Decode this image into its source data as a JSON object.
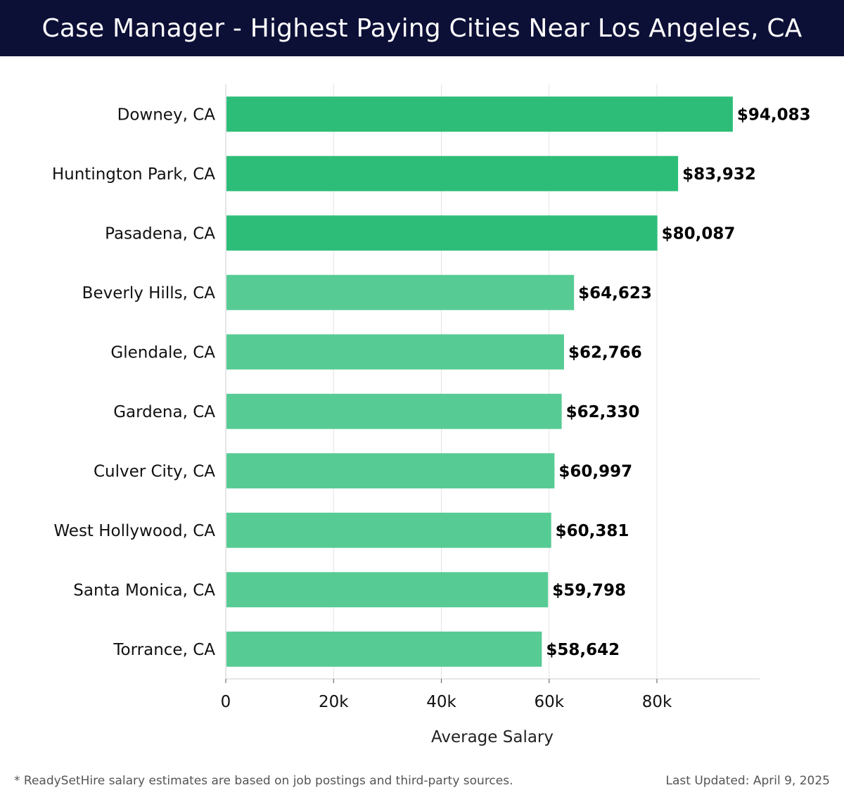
{
  "header": {
    "title": "Case Manager - Highest Paying Cities Near Los Angeles, CA"
  },
  "chart_data": {
    "type": "bar",
    "orientation": "horizontal",
    "categories": [
      "Downey, CA",
      "Huntington Park, CA",
      "Pasadena, CA",
      "Beverly Hills, CA",
      "Glendale, CA",
      "Gardena, CA",
      "Culver City, CA",
      "West Hollywood, CA",
      "Santa Monica, CA",
      "Torrance, CA"
    ],
    "values": [
      94083,
      83932,
      80087,
      64623,
      62766,
      62330,
      60997,
      60381,
      59798,
      58642
    ],
    "value_labels": [
      "$94,083",
      "$83,932",
      "$80,087",
      "$64,623",
      "$62,766",
      "$62,330",
      "$60,997",
      "$60,381",
      "$59,798",
      "$58,642"
    ],
    "xlabel": "Average Salary",
    "ylabel": "",
    "xlim": [
      0,
      99000
    ],
    "xticks": [
      0,
      20000,
      40000,
      60000,
      80000
    ],
    "xtick_labels": [
      "0",
      "20k",
      "40k",
      "60k",
      "80k"
    ],
    "grid": true,
    "colors": {
      "top_bars": "#2dbd78",
      "other_bars": "#57cb94",
      "grid": "#e3e3e3",
      "axis": "#cccccc"
    }
  },
  "footer": {
    "note": "* ReadySetHire salary estimates are based on job postings and third-party sources.",
    "updated": "Last Updated: April 9, 2025"
  }
}
